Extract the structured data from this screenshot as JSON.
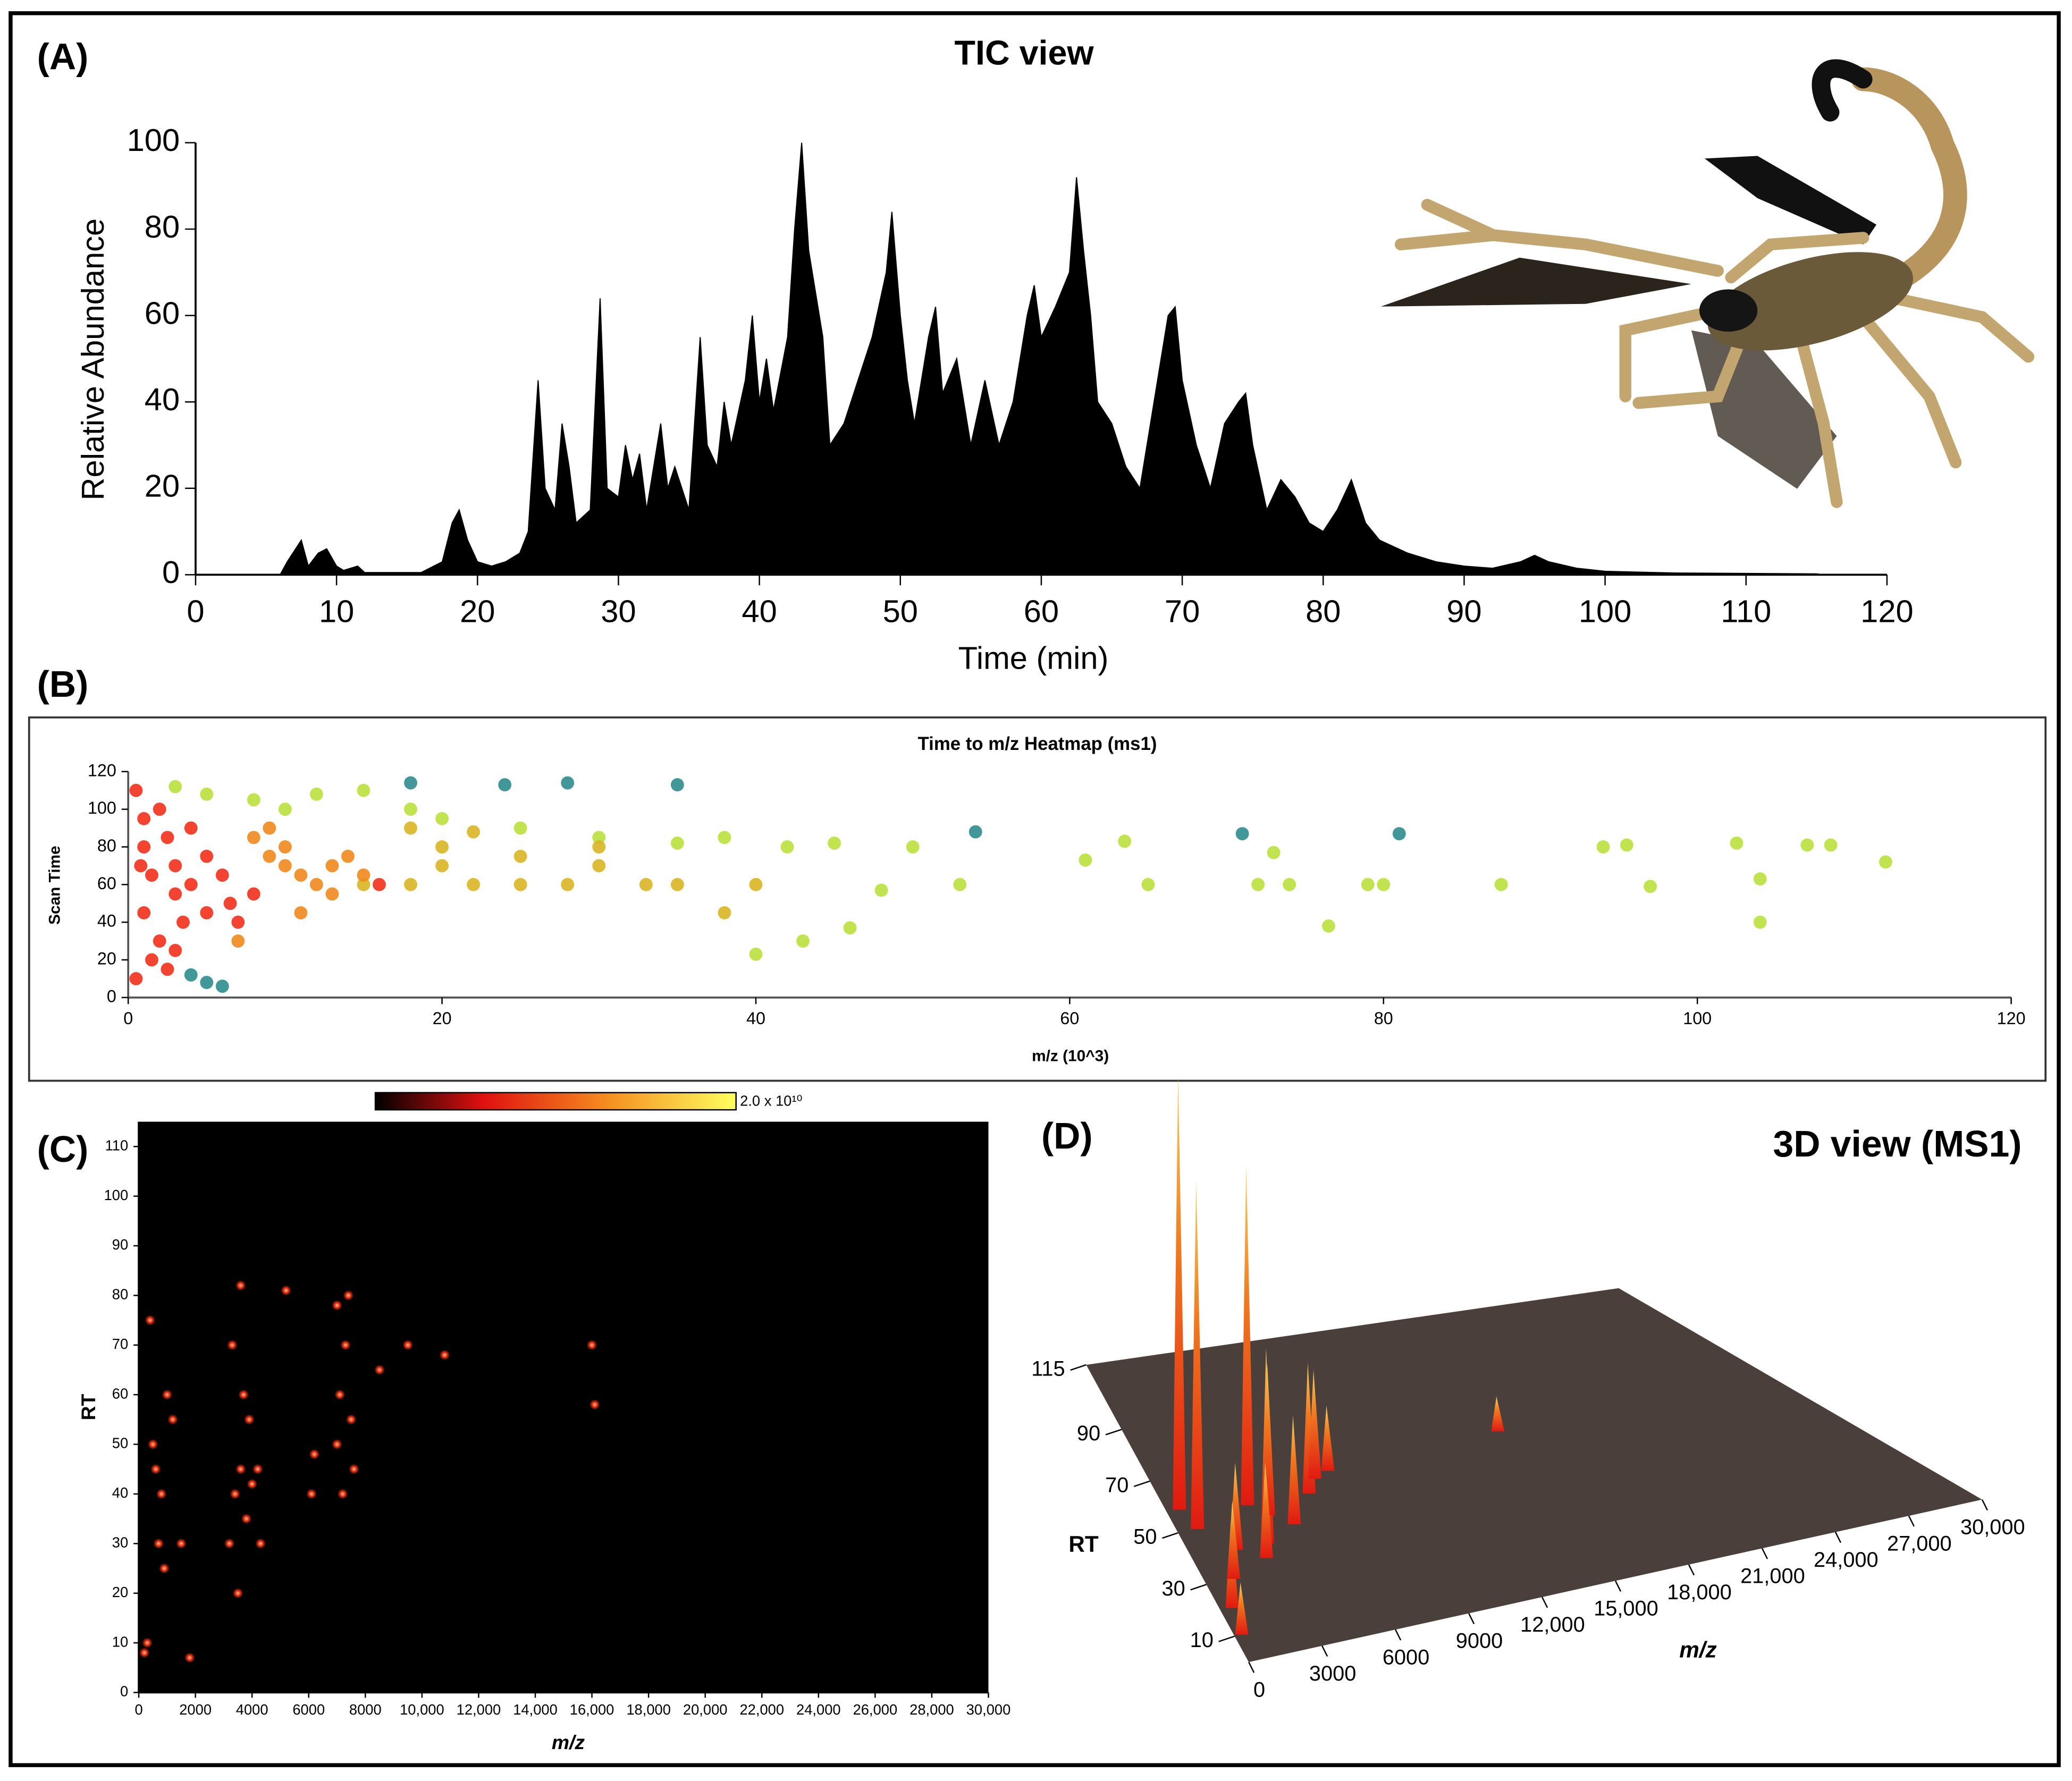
{
  "chart_data": [
    {
      "type": "area",
      "panel_label": "(A)",
      "title": "TIC view",
      "x_label": "Time (min)",
      "y_label": "Relative Abundance",
      "color": "#000000",
      "xlim": [
        0,
        120
      ],
      "ylim": [
        0,
        100
      ],
      "xticks": [
        0,
        10,
        20,
        30,
        40,
        50,
        60,
        70,
        80,
        90,
        100,
        110,
        120
      ],
      "yticks": [
        0,
        20,
        40,
        60,
        80,
        100
      ],
      "x": [
        0,
        6,
        6.5,
        7.5,
        8,
        8.7,
        9.3,
        10,
        10.5,
        11.5,
        12,
        16,
        17.5,
        18.2,
        18.7,
        19.3,
        20,
        21,
        22,
        23,
        23.6,
        24,
        24.3,
        24.8,
        25.5,
        26,
        26.5,
        27,
        28,
        28.7,
        29.2,
        30,
        30.5,
        31,
        31.5,
        32,
        33,
        33.5,
        34,
        35,
        35.8,
        36.3,
        37,
        37.5,
        38,
        39,
        39.5,
        40,
        40.5,
        41,
        42,
        42.5,
        43,
        43.5,
        44,
        44.5,
        45,
        46,
        47,
        48,
        49,
        49.4,
        50,
        50.5,
        51,
        52,
        52.5,
        53,
        54,
        54.5,
        55,
        56,
        57,
        58,
        59,
        59.5,
        60,
        61,
        62,
        62.5,
        63,
        63.5,
        64,
        65,
        66,
        67,
        68,
        69,
        69.5,
        70,
        71,
        72,
        73,
        74,
        74.5,
        75,
        76,
        77,
        78,
        79,
        80,
        81,
        82,
        83,
        84,
        86,
        88,
        90,
        92,
        94,
        95,
        96,
        98,
        100,
        105,
        110,
        115,
        115.5
      ],
      "values": [
        0,
        0,
        3,
        8,
        2,
        5,
        6,
        2,
        1,
        2,
        0.5,
        0.5,
        3,
        12,
        15,
        8,
        3,
        2,
        3,
        5,
        10,
        30,
        45,
        20,
        15,
        35,
        25,
        12,
        15,
        64,
        20,
        18,
        30,
        22,
        28,
        15,
        35,
        20,
        25,
        15,
        55,
        30,
        25,
        40,
        30,
        45,
        60,
        40,
        50,
        38,
        55,
        80,
        100,
        75,
        65,
        55,
        30,
        35,
        45,
        55,
        70,
        84,
        60,
        45,
        35,
        55,
        62,
        42,
        50,
        40,
        30,
        45,
        30,
        40,
        60,
        67,
        55,
        62,
        70,
        92,
        75,
        60,
        40,
        35,
        25,
        20,
        40,
        60,
        62,
        45,
        30,
        20,
        35,
        40,
        42,
        30,
        15,
        22,
        18,
        12,
        10,
        15,
        22,
        12,
        8,
        5,
        3,
        2,
        1.5,
        3,
        4.5,
        3,
        1.5,
        0.8,
        0.4,
        0.3,
        0.2,
        0
      ]
    },
    {
      "type": "scatter",
      "panel_label": "(B)",
      "title": "Time to m/z Heatmap (ms1)",
      "x_label": "m/z (10^3)",
      "y_label": "Scan Time",
      "xlim": [
        0,
        120
      ],
      "ylim": [
        0,
        120
      ],
      "xticks": [
        0,
        20,
        40,
        60,
        80,
        100,
        120
      ],
      "yticks": [
        0,
        20,
        40,
        60,
        80,
        100,
        120
      ],
      "series": [
        {
          "color": "#b9e03c",
          "x": [
            3,
            5,
            8,
            10,
            12,
            15,
            18,
            20,
            25,
            30,
            35,
            38,
            42,
            45,
            50,
            48,
            40,
            43,
            46,
            53,
            61,
            63.5,
            65,
            72,
            73,
            74,
            79,
            80,
            87.5,
            94,
            95.5,
            97,
            102.5,
            104,
            107,
            108.5,
            112,
            76.5,
            104
          ],
          "values": [
            112,
            108,
            105,
            100,
            108,
            110,
            100,
            95,
            90,
            85,
            82,
            85,
            80,
            82,
            80,
            57,
            23,
            30,
            37,
            60,
            73,
            83,
            60,
            60,
            77,
            60,
            60,
            60,
            60,
            80,
            81,
            59,
            82,
            63,
            81,
            81,
            72,
            38,
            40
          ]
        },
        {
          "color": "#2e8c8e",
          "x": [
            18,
            28,
            35,
            54,
            71,
            81,
            5,
            6,
            4,
            24
          ],
          "values": [
            114,
            114,
            113,
            88,
            87,
            87,
            8,
            6,
            12,
            113
          ]
        },
        {
          "color": "#d8b524",
          "x": [
            15,
            18,
            20,
            22,
            25,
            28,
            30,
            33,
            35,
            20,
            25,
            30,
            18,
            22,
            40,
            38
          ],
          "values": [
            60,
            60,
            70,
            60,
            60,
            60,
            70,
            60,
            60,
            80,
            75,
            80,
            90,
            88,
            60,
            45
          ]
        },
        {
          "color": "#f08a1e",
          "x": [
            8,
            9,
            10,
            11,
            12,
            13,
            14,
            15,
            11,
            13,
            9,
            7,
            10
          ],
          "values": [
            85,
            75,
            70,
            65,
            60,
            70,
            75,
            65,
            45,
            55,
            90,
            30,
            80
          ]
        },
        {
          "color": "#f2301c",
          "x": [
            0.5,
            1,
            1,
            1.5,
            1,
            2,
            2,
            2.5,
            3,
            3,
            3.5,
            4,
            4,
            5,
            5,
            6,
            6.5,
            7,
            8,
            1.5,
            2.5,
            3,
            16,
            0.5,
            0.8
          ],
          "values": [
            110,
            95,
            80,
            65,
            45,
            30,
            100,
            85,
            70,
            55,
            40,
            90,
            60,
            75,
            45,
            65,
            50,
            40,
            55,
            20,
            15,
            25,
            60,
            10,
            70
          ]
        }
      ]
    },
    {
      "type": "heatmap",
      "panel_label": "(C)",
      "x_label": "m/z",
      "y_label": "RT",
      "color": "#ff3a1a",
      "background": "#000000",
      "colorbar_max": {
        "value": 20000000000,
        "label": "2.0 x 10¹⁰"
      },
      "xlim": [
        0,
        30000
      ],
      "ylim": [
        0,
        115
      ],
      "xticks": [
        0,
        2000,
        4000,
        6000,
        8000,
        {
          "value": 10000,
          "label": "10,000"
        },
        {
          "value": 12000,
          "label": "12,000"
        },
        {
          "value": 14000,
          "label": "14,000"
        },
        {
          "value": 16000,
          "label": "16,000"
        },
        {
          "value": 18000,
          "label": "18,000"
        },
        {
          "value": 20000,
          "label": "20,000"
        },
        {
          "value": 22000,
          "label": "22,000"
        },
        {
          "value": 24000,
          "label": "24,000"
        },
        {
          "value": 26000,
          "label": "26,000"
        },
        {
          "value": 28000,
          "label": "28,000"
        },
        {
          "value": 30000,
          "label": "30,000"
        }
      ],
      "yticks": [
        0,
        10,
        20,
        30,
        40,
        50,
        60,
        70,
        80,
        90,
        100,
        110
      ],
      "x": [
        500,
        600,
        800,
        700,
        1000,
        1200,
        900,
        400,
        300,
        200,
        1500,
        3200,
        3400,
        3600,
        3800,
        3500,
        3300,
        3900,
        4000,
        3700,
        4200,
        3600,
        5200,
        6100,
        6200,
        7000,
        7100,
        7300,
        7200,
        7500,
        7600,
        7000,
        7400,
        8500,
        9500,
        10800,
        16000,
        16100,
        1800,
        4300
      ],
      "values": [
        50,
        45,
        40,
        30,
        60,
        55,
        25,
        75,
        10,
        8,
        30,
        30,
        40,
        45,
        35,
        20,
        70,
        55,
        42,
        60,
        45,
        82,
        81,
        40,
        48,
        50,
        60,
        70,
        40,
        55,
        45,
        78,
        80,
        65,
        70,
        68,
        70,
        58,
        7,
        30
      ]
    },
    {
      "type": "surface3d",
      "panel_label": "(D)",
      "title": "3D view (MS1)",
      "x_label": "m/z",
      "y_label": "RT",
      "color": "#4a3f3a",
      "xlim": [
        0,
        30000
      ],
      "ylim": [
        0,
        115
      ],
      "zlim": [
        0,
        100
      ],
      "xticks": [
        0,
        3000,
        6000,
        9000,
        {
          "value": 12000,
          "label": "12,000"
        },
        {
          "value": 15000,
          "label": "15,000"
        },
        {
          "value": 18000,
          "label": "18,000"
        },
        {
          "value": 21000,
          "label": "21,000"
        },
        {
          "value": 24000,
          "label": "24,000"
        },
        {
          "value": 27000,
          "label": "27,000"
        },
        {
          "value": 30000,
          "label": "30,000"
        }
      ],
      "yticks": [
        10,
        30,
        50,
        70,
        90,
        115
      ],
      "x": [
        600,
        900,
        3600,
        3400,
        4200,
        6500,
        7200,
        500,
        300,
        16500,
        8000,
        5000,
        2000,
        1200,
        3000
      ],
      "y": [
        58,
        50,
        55,
        40,
        50,
        55,
        60,
        20,
        10,
        65,
        62,
        45,
        40,
        30,
        35
      ],
      "values": [
        100,
        80,
        78,
        45,
        35,
        30,
        25,
        20,
        12,
        8,
        15,
        25,
        20,
        18,
        22
      ]
    }
  ]
}
